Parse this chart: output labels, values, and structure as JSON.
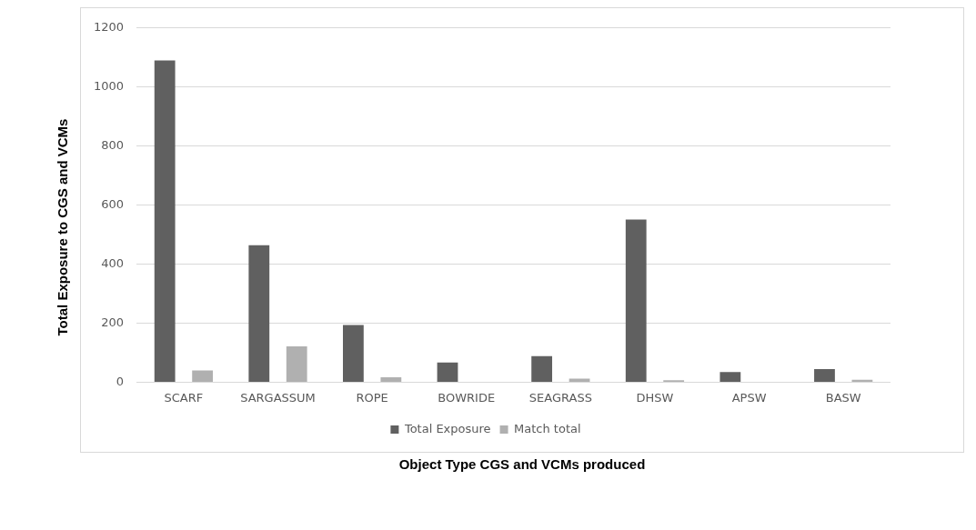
{
  "chart_data": {
    "type": "bar",
    "xlabel": "Object Type CGS and VCMs produced",
    "ylabel": "Total Exposure to CGS and VCMs",
    "categories": [
      "SCARF",
      "SARGASSUM",
      "ROPE",
      "BOWRIDE",
      "SEAGRASS",
      "DHSW",
      "APSW",
      "BASW"
    ],
    "series": [
      {
        "name": "Total Exposure",
        "color": "#606060",
        "values": [
          1090,
          464,
          194,
          67,
          88,
          551,
          34,
          44
        ]
      },
      {
        "name": "Match total",
        "color": "#b0b0b0",
        "values": [
          40,
          121,
          17,
          0,
          12,
          7,
          0,
          8
        ]
      }
    ],
    "ylim": [
      0,
      1200
    ],
    "yticks": [
      0,
      200,
      400,
      600,
      800,
      1000,
      1200
    ],
    "grid": "y",
    "legend": "bottom"
  }
}
